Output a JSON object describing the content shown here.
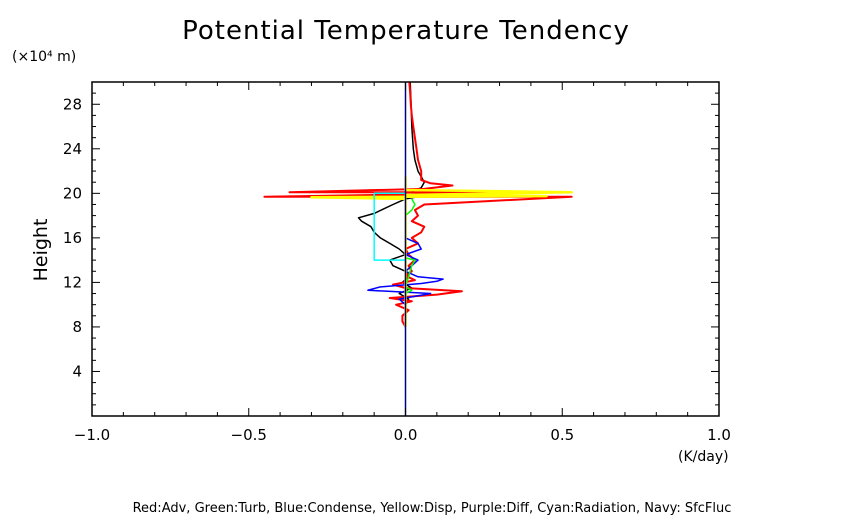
{
  "chart_data": {
    "type": "line",
    "title": "Potential Temperature Tendency",
    "ylabel": "Height",
    "y_unit": "(×10⁴ m)",
    "x_unit": "(K/day)",
    "xlim": [
      -1.0,
      1.0
    ],
    "ylim": [
      0,
      30
    ],
    "x_ticks": [
      "−1.0",
      "−0.5",
      "0.0",
      "0.5",
      "1.0"
    ],
    "x_tick_values": [
      -1.0,
      -0.5,
      0.0,
      0.5,
      1.0
    ],
    "y_ticks": [
      "4",
      "8",
      "12",
      "16",
      "20",
      "24",
      "28"
    ],
    "y_tick_values": [
      4,
      8,
      12,
      16,
      20,
      24,
      28
    ],
    "legend_text": "Red:Adv, Green:Turb, Blue:Condense, Yellow:Disp, Purple:Diff, Cyan:Radiation, Navy: SfcFluc",
    "grid": false,
    "series": [
      {
        "color": "#000000",
        "points": [
          [
            0,
            8
          ],
          [
            0.0,
            10
          ],
          [
            0.01,
            10.5
          ],
          [
            -0.02,
            11
          ],
          [
            0.02,
            11.5
          ],
          [
            -0.01,
            12
          ],
          [
            0.01,
            12.5
          ],
          [
            0.0,
            13
          ],
          [
            -0.04,
            13.5
          ],
          [
            -0.05,
            14
          ],
          [
            0.0,
            14.5
          ],
          [
            -0.02,
            15
          ],
          [
            -0.05,
            15.5
          ],
          [
            -0.08,
            16
          ],
          [
            -0.1,
            16.5
          ],
          [
            -0.11,
            17
          ],
          [
            -0.14,
            17.5
          ],
          [
            -0.15,
            17.8
          ],
          [
            -0.1,
            18.2
          ],
          [
            -0.07,
            18.6
          ],
          [
            -0.04,
            19
          ],
          [
            0.0,
            19.5
          ],
          [
            0.06,
            19.8
          ],
          [
            0.02,
            20.2
          ],
          [
            0.05,
            20.5
          ],
          [
            0.06,
            21
          ],
          [
            0.05,
            21.5
          ],
          [
            0.04,
            22
          ],
          [
            0.03,
            23
          ],
          [
            0.025,
            24
          ],
          [
            0.02,
            26
          ],
          [
            0.018,
            28
          ],
          [
            0.015,
            30
          ]
        ]
      },
      {
        "color": "#ff0000",
        "points": [
          [
            0.0,
            8
          ],
          [
            -0.01,
            8.5
          ],
          [
            -0.01,
            9
          ],
          [
            0.01,
            9.5
          ],
          [
            -0.03,
            10
          ],
          [
            0.02,
            10.3
          ],
          [
            -0.05,
            10.6
          ],
          [
            0.1,
            10.9
          ],
          [
            0.18,
            11.2
          ],
          [
            0.0,
            11.5
          ],
          [
            -0.04,
            11.8
          ],
          [
            0.03,
            12.2
          ],
          [
            0.0,
            12.6
          ],
          [
            0.02,
            13
          ],
          [
            0.01,
            13.5
          ],
          [
            0.03,
            14
          ],
          [
            0.01,
            14.5
          ],
          [
            0.0,
            15
          ],
          [
            0.04,
            15.5
          ],
          [
            0.02,
            16
          ],
          [
            0.05,
            16.5
          ],
          [
            0.06,
            17
          ],
          [
            0.02,
            17.5
          ],
          [
            0.04,
            18
          ],
          [
            0.03,
            18.5
          ],
          [
            0.06,
            19
          ],
          [
            0.53,
            19.7
          ],
          [
            -0.45,
            19.7
          ],
          [
            0.02,
            19.9
          ],
          [
            0.28,
            20.1
          ],
          [
            -0.37,
            20.1
          ],
          [
            0.06,
            20.4
          ],
          [
            0.15,
            20.7
          ],
          [
            0.08,
            20.9
          ],
          [
            0.05,
            21.2
          ],
          [
            0.05,
            22
          ],
          [
            0.04,
            23
          ],
          [
            0.035,
            24
          ],
          [
            0.03,
            25
          ],
          [
            0.025,
            26
          ],
          [
            0.02,
            27
          ],
          [
            0.017,
            28
          ],
          [
            0.015,
            29
          ],
          [
            0.012,
            30
          ]
        ]
      },
      {
        "color": "#0000ff",
        "points": [
          [
            0.0,
            10
          ],
          [
            -0.02,
            10.5
          ],
          [
            0.08,
            11
          ],
          [
            -0.12,
            11.3
          ],
          [
            -0.08,
            11.6
          ],
          [
            0.05,
            11.9
          ],
          [
            0.1,
            12.1
          ],
          [
            0.12,
            12.3
          ],
          [
            0.04,
            12.5
          ],
          [
            0.0,
            13
          ],
          [
            0.02,
            13.5
          ],
          [
            0.04,
            14
          ],
          [
            0.0,
            14.5
          ],
          [
            0.05,
            15
          ],
          [
            0.04,
            15.5
          ],
          [
            0.0,
            16
          ]
        ]
      },
      {
        "color": "#00ff00",
        "points": [
          [
            0.0,
            11
          ],
          [
            0.02,
            11.3
          ],
          [
            0.0,
            11.6
          ],
          [
            0.02,
            13.5
          ],
          [
            0.03,
            14
          ],
          [
            0.0,
            14.2
          ],
          [
            0.0,
            18
          ],
          [
            0.02,
            18.5
          ],
          [
            0.03,
            19
          ],
          [
            0.02,
            19.5
          ]
        ]
      },
      {
        "color": "#ffff00",
        "points": [
          [
            0.0,
            8
          ],
          [
            0.0,
            19.5
          ],
          [
            -0.3,
            19.65
          ],
          [
            0.45,
            19.75
          ],
          [
            0.0,
            19.85
          ],
          [
            0.53,
            20.1
          ],
          [
            0.0,
            20.3
          ],
          [
            0.0,
            21.5
          ]
        ]
      },
      {
        "color": "#00ffff",
        "points": [
          [
            0.0,
            14
          ],
          [
            -0.1,
            14
          ],
          [
            -0.1,
            20
          ],
          [
            0.0,
            20
          ]
        ]
      },
      {
        "color": "#000080",
        "points": [
          [
            0.0,
            0
          ],
          [
            0.0,
            30
          ]
        ]
      }
    ]
  }
}
